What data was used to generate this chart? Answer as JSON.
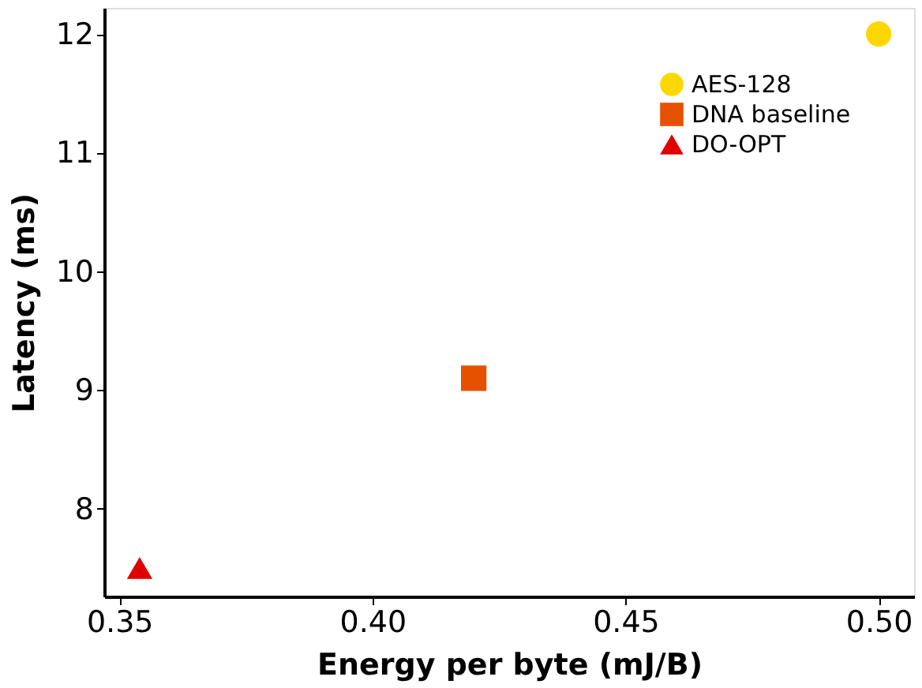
{
  "chart_data": {
    "type": "scatter",
    "xlabel": "Energy per byte (mJ/B)",
    "ylabel": "Latency (ms)",
    "series": [
      {
        "name": "AES-128",
        "color": "#ffd700",
        "marker": "circle",
        "x": [
          0.5
        ],
        "values": [
          12.0
        ]
      },
      {
        "name": "DNA baseline",
        "color": "#e65100",
        "marker": "square",
        "x": [
          0.42
        ],
        "values": [
          9.1
        ]
      },
      {
        "name": "DO-OPT",
        "color": "#e00000",
        "marker": "triangle",
        "x": [
          0.354
        ],
        "values": [
          7.5
        ]
      }
    ],
    "xlim": [
      0.347,
      0.507
    ],
    "xticks": [
      {
        "value": 0.35,
        "label": "0.35"
      },
      {
        "value": 0.4,
        "label": "0.40"
      },
      {
        "value": 0.45,
        "label": "0.45"
      },
      {
        "value": 0.5,
        "label": "0.50"
      }
    ],
    "ylim": [
      7.26,
      12.22
    ],
    "yticks": [
      8,
      9,
      10,
      11,
      12
    ],
    "grid": false,
    "legend": "top right"
  }
}
